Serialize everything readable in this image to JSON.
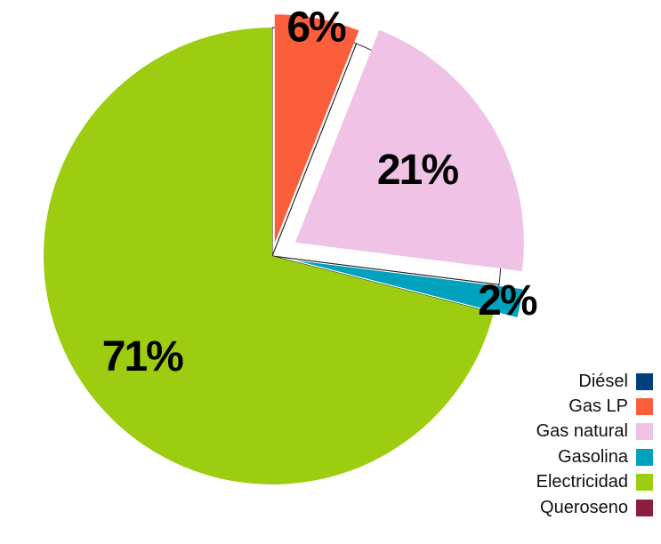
{
  "chart_data": {
    "type": "pie",
    "exploded": true,
    "slices": [
      {
        "name": "Diésel",
        "value": 0,
        "color": "#003f7d",
        "label": ""
      },
      {
        "name": "Gas LP",
        "value": 6,
        "color": "#fb5e3a",
        "label": "6%"
      },
      {
        "name": "Gas natural",
        "value": 21,
        "color": "#efc2e6",
        "label": "21%"
      },
      {
        "name": "Gasolina",
        "value": 2,
        "color": "#00a1bc",
        "label": "2%"
      },
      {
        "name": "Electricidad",
        "value": 71,
        "color": "#9ccd10",
        "label": "71%"
      },
      {
        "name": "Queroseno",
        "value": 0,
        "color": "#8c1d3f",
        "label": ""
      }
    ],
    "legend_position": "bottom-right"
  }
}
